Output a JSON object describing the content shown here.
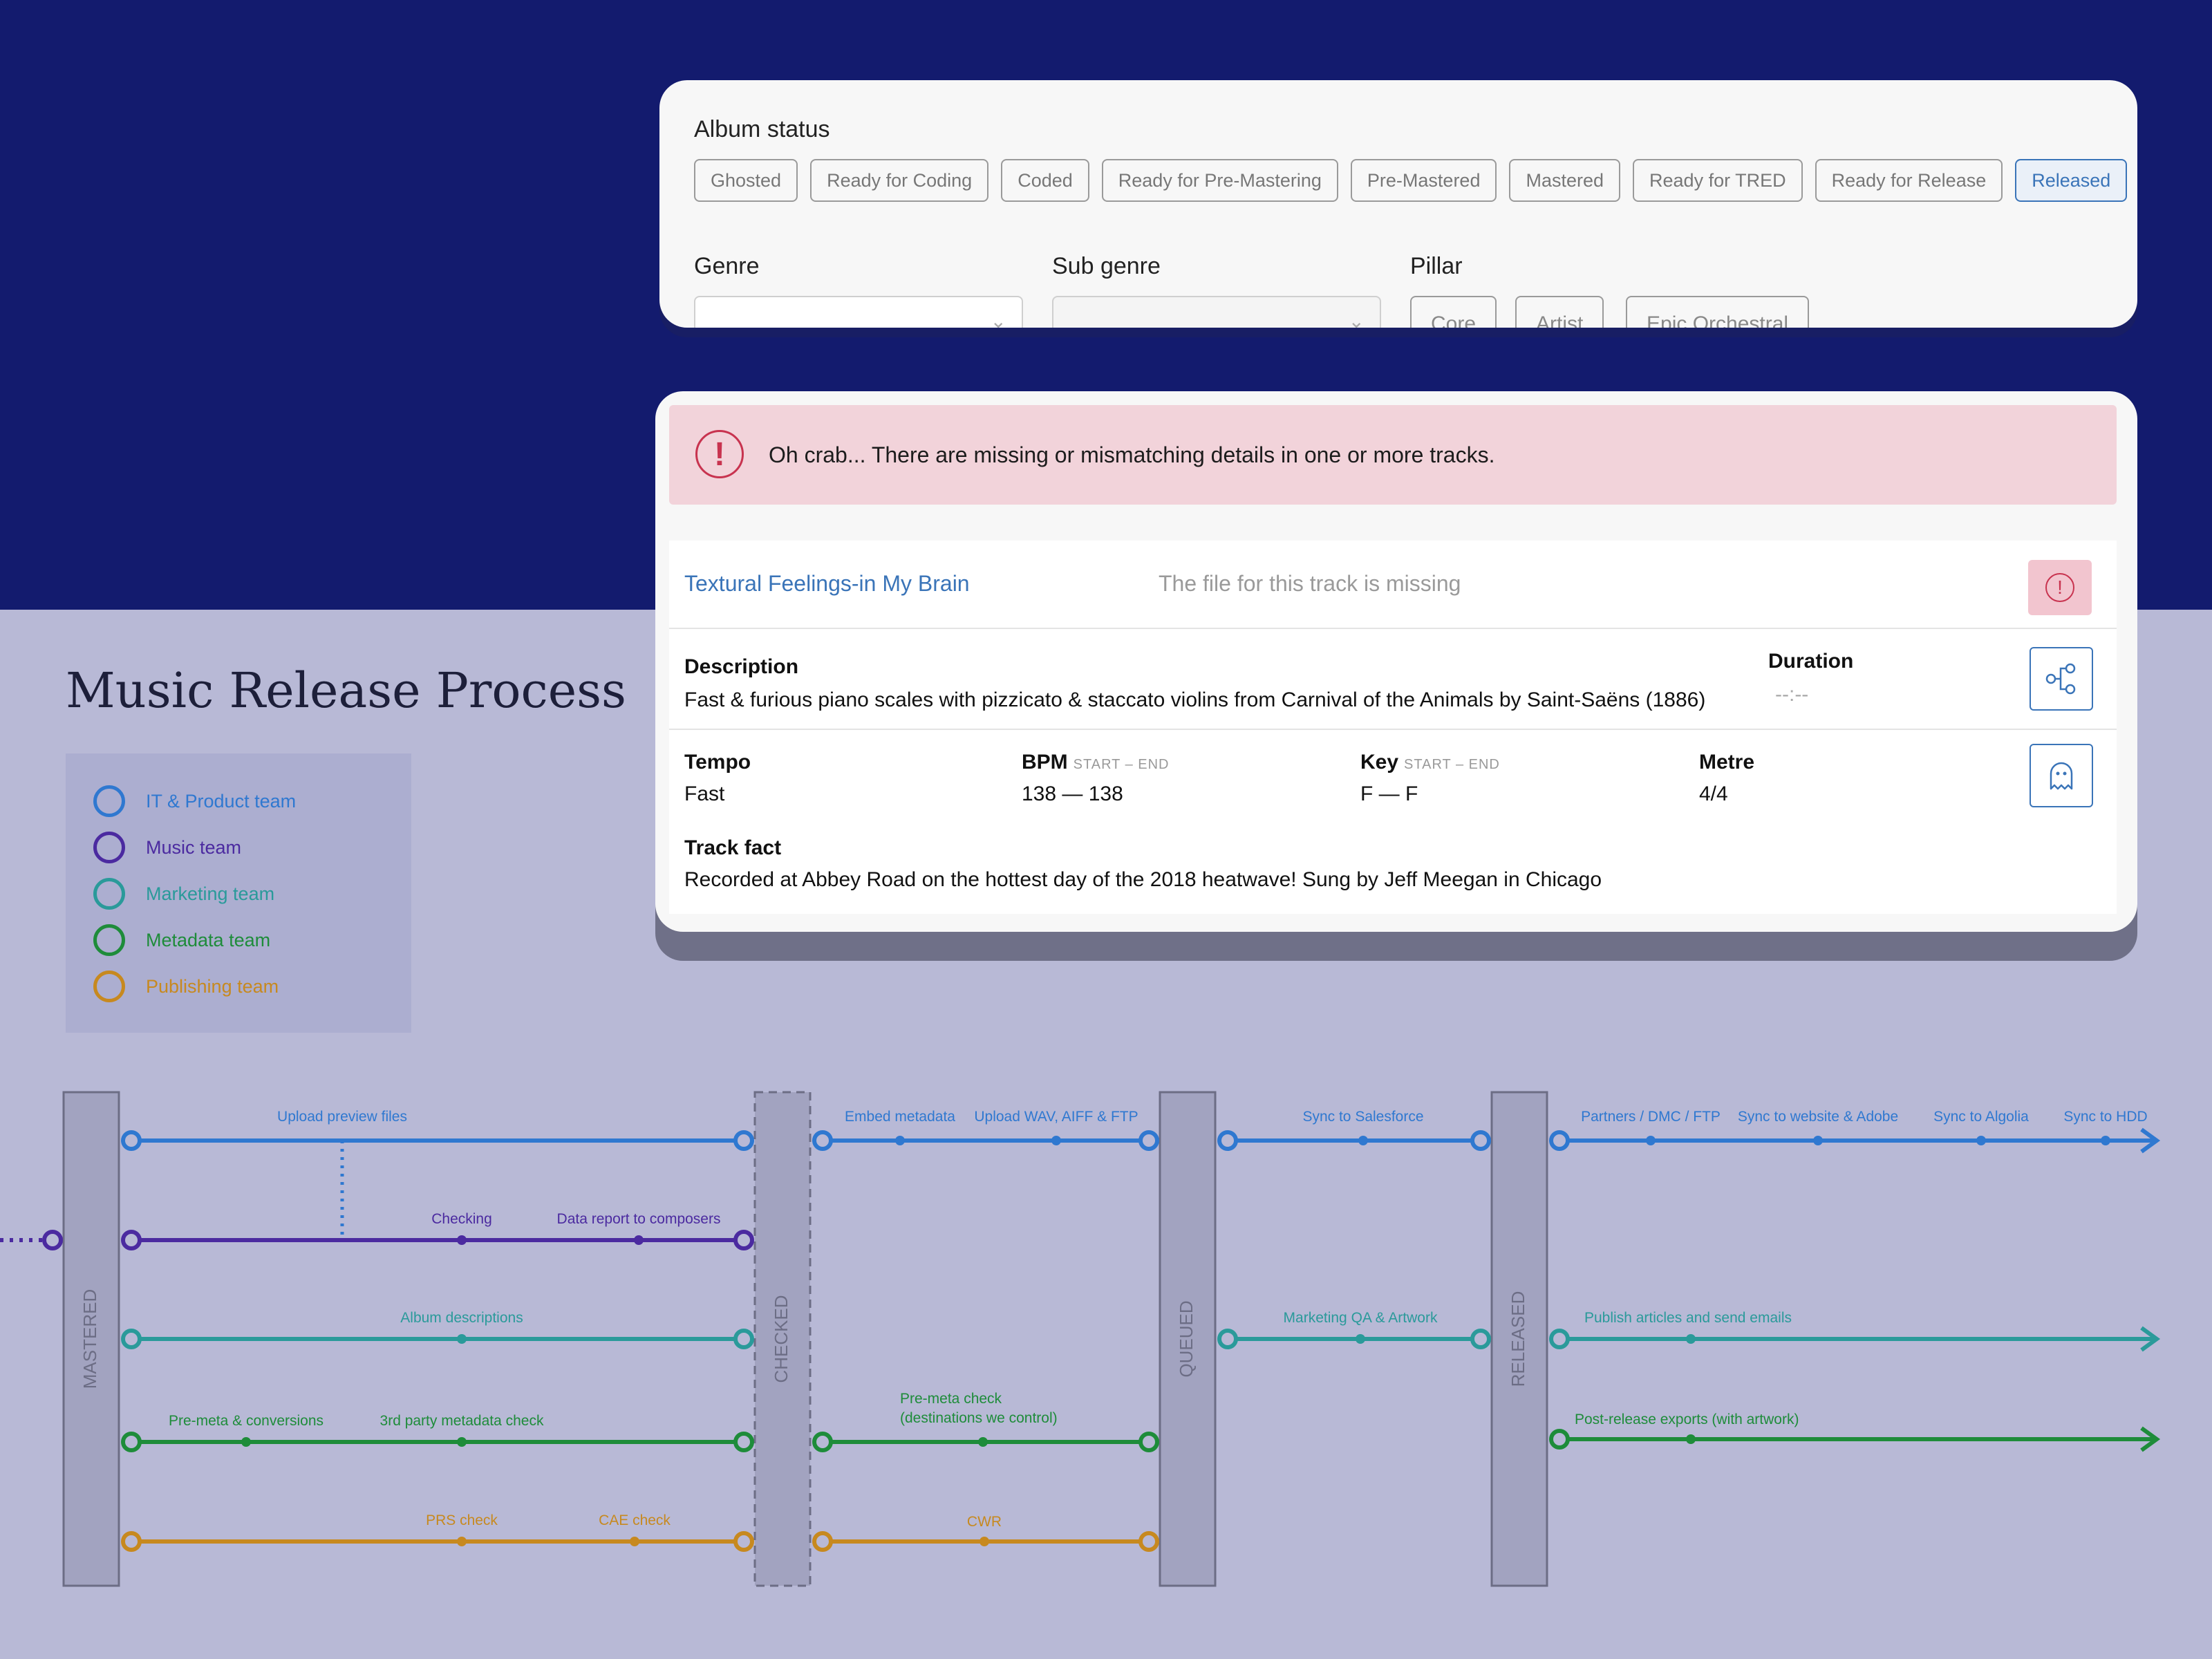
{
  "album": {
    "title": "Album status",
    "statuses": [
      {
        "label": "Ghosted",
        "active": false
      },
      {
        "label": "Ready for Coding",
        "active": false
      },
      {
        "label": "Coded",
        "active": false
      },
      {
        "label": "Ready for Pre-Mastering",
        "active": false
      },
      {
        "label": "Pre-Mastered",
        "active": false
      },
      {
        "label": "Mastered",
        "active": false
      },
      {
        "label": "Ready for TRED",
        "active": false
      },
      {
        "label": "Ready for Release",
        "active": false
      },
      {
        "label": "Released",
        "active": true
      }
    ],
    "genre_label": "Genre",
    "subgenre_label": "Sub genre",
    "pillar_label": "Pillar",
    "pillars": [
      "Core",
      "Artist",
      "Epic Orchestral"
    ]
  },
  "alert": {
    "text": "Oh crab... There are missing or mismatching details in one or more tracks."
  },
  "track": {
    "name": "Textural Feelings-in My Brain",
    "missing_text": "The file for this track is missing",
    "description_label": "Description",
    "description": "Fast & furious piano scales with pizzicato & staccato violins from Carnival of the Animals by Saint-Saëns (1886)",
    "duration_label": "Duration",
    "duration": "--:--",
    "tempo_label": "Tempo",
    "tempo": "Fast",
    "bpm_label": "BPM",
    "bpm_sub": "START – END",
    "bpm": "138 — 138",
    "key_label": "Key",
    "key_sub": "START – END",
    "key": "F — F",
    "metre_label": "Metre",
    "metre": "4/4",
    "fact_label": "Track fact",
    "fact": "Recorded at Abbey Road on the hottest day of the 2018 heatwave! Sung by Jeff Meegan in Chicago"
  },
  "process": {
    "title": "Music Release Process",
    "teams": [
      {
        "label": "IT & Product team",
        "color": "#2f78d0"
      },
      {
        "label": "Music team",
        "color": "#4b2aa0"
      },
      {
        "label": "Marketing team",
        "color": "#2a9a9a"
      },
      {
        "label": "Metadata team",
        "color": "#1e8c3a"
      },
      {
        "label": "Publishing team",
        "color": "#c7891f"
      }
    ],
    "gates": [
      "MASTERED",
      "CHECKED",
      "QUEUED",
      "RELEASED"
    ],
    "steps": {
      "upload_preview": "Upload preview files",
      "checking": "Checking",
      "data_report": "Data report to composers",
      "album_descriptions": "Album descriptions",
      "pre_meta": "Pre-meta & conversions",
      "third_party": "3rd party metadata check",
      "prs": "PRS check",
      "cae": "CAE check",
      "embed": "Embed metadata",
      "upload_wav": "Upload WAV, AIFF & FTP",
      "pre_meta_check_1": "Pre-meta check",
      "pre_meta_check_2": "(destinations we control)",
      "cwr": "CWR",
      "sync_salesforce": "Sync to Salesforce",
      "marketing_qa": "Marketing QA & Artwork",
      "partners": "Partners / DMC / FTP",
      "sync_website": "Sync to website & Adobe",
      "sync_algolia": "Sync to Algolia",
      "sync_hdd": "Sync to HDD",
      "publish": "Publish articles and send emails",
      "post_release": "Post-release exports (with artwork)"
    }
  }
}
